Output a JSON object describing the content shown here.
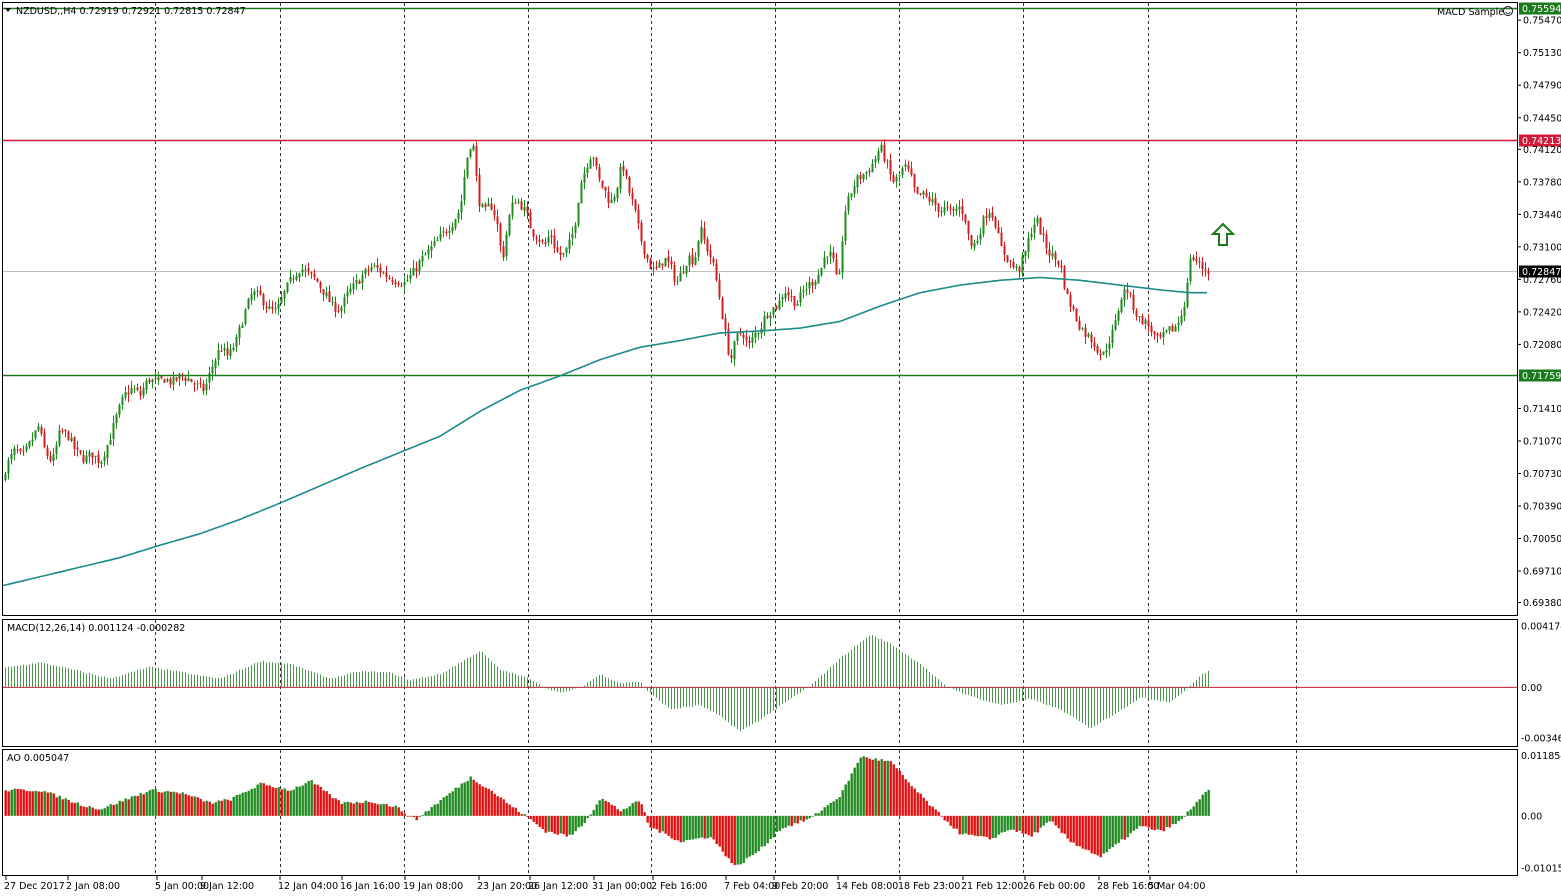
{
  "header": {
    "symbol_info": "NZDUSD,,H4  0.72919 0.72921 0.72815 0.72847",
    "indicator_name": "MACD Sample",
    "macd_info": "MACD(12,26,14) 0.001124 -0.000282",
    "ao_info": "AO 0.005047"
  },
  "colors": {
    "bull_candle": "#1f8a1f",
    "bear_candle": "#d11f1f",
    "resistance": "#d01a3a",
    "support": "#1b7a1b",
    "ma": "#1a8a8a",
    "ao_up": "#1f8a1f",
    "ao_down": "#e01010",
    "macd_hist": "#3a8a3a"
  },
  "chart_data": [
    {
      "name": "price",
      "type": "candlestick",
      "price_axis": {
        "ylim": [
          0.6925,
          0.7565
        ],
        "ticks": [
          "0.75470",
          "0.75130",
          "0.74790",
          "0.74450",
          "0.74120",
          "0.73780",
          "0.73440",
          "0.73100",
          "0.72760",
          "0.72420",
          "0.72080",
          "0.71410",
          "0.71070",
          "0.70730",
          "0.70390",
          "0.70050",
          "0.69710",
          "0.69380"
        ]
      },
      "levels": [
        {
          "label": "0.75594",
          "value": 0.75594,
          "color": "#1b7a1b"
        },
        {
          "label": "0.74213",
          "value": 0.74213,
          "color": "#d01a3a"
        },
        {
          "label": "0.71759",
          "value": 0.71759,
          "color": "#1b7a1b"
        },
        {
          "label": "0.72847",
          "value": 0.72847,
          "color": "#000000"
        }
      ],
      "time_axis": [
        "27 Dec 2017",
        "2 Jan 08:00",
        "5 Jan 00:00",
        "9 Jan 12:00",
        "12 Jan 04:00",
        "16 Jan 16:00",
        "19 Jan 08:00",
        "23 Jan 20:00",
        "26 Jan 12:00",
        "31 Jan 00:00",
        "2 Feb 16:00",
        "7 Feb 04:00",
        "9 Feb 20:00",
        "14 Feb 08:00",
        "18 Feb 23:00",
        "21 Feb 12:00",
        "26 Feb 00:00",
        "28 Feb 16:00",
        "5 Mar 04:00"
      ],
      "close_path": [
        [
          0,
          0.7065
        ],
        [
          8,
          0.7085
        ],
        [
          15,
          0.7098
        ],
        [
          22,
          0.709
        ],
        [
          30,
          0.7105
        ],
        [
          38,
          0.7122
        ],
        [
          45,
          0.7095
        ],
        [
          52,
          0.7085
        ],
        [
          60,
          0.7118
        ],
        [
          68,
          0.7112
        ],
        [
          76,
          0.7095
        ],
        [
          84,
          0.7088
        ],
        [
          92,
          0.7093
        ],
        [
          100,
          0.7085
        ],
        [
          108,
          0.7105
        ],
        [
          116,
          0.7132
        ],
        [
          124,
          0.7155
        ],
        [
          132,
          0.7162
        ],
        [
          140,
          0.7155
        ],
        [
          148,
          0.7172
        ],
        [
          156,
          0.7168
        ],
        [
          164,
          0.7172
        ],
        [
          172,
          0.7168
        ],
        [
          180,
          0.7175
        ],
        [
          188,
          0.7172
        ],
        [
          196,
          0.7165
        ],
        [
          204,
          0.716
        ],
        [
          212,
          0.7185
        ],
        [
          220,
          0.7205
        ],
        [
          228,
          0.7195
        ],
        [
          236,
          0.7212
        ],
        [
          244,
          0.724
        ],
        [
          252,
          0.7262
        ],
        [
          260,
          0.7258
        ],
        [
          268,
          0.7245
        ],
        [
          276,
          0.7242
        ],
        [
          284,
          0.7262
        ],
        [
          292,
          0.7278
        ],
        [
          300,
          0.7288
        ],
        [
          308,
          0.7282
        ],
        [
          316,
          0.7275
        ],
        [
          324,
          0.7262
        ],
        [
          332,
          0.7248
        ],
        [
          340,
          0.7245
        ],
        [
          348,
          0.7262
        ],
        [
          356,
          0.7272
        ],
        [
          364,
          0.7282
        ],
        [
          372,
          0.729
        ],
        [
          380,
          0.7285
        ],
        [
          388,
          0.7278
        ],
        [
          396,
          0.7275
        ],
        [
          404,
          0.7272
        ],
        [
          412,
          0.7282
        ],
        [
          420,
          0.7295
        ],
        [
          428,
          0.7305
        ],
        [
          436,
          0.7315
        ],
        [
          444,
          0.7325
        ],
        [
          452,
          0.7335
        ],
        [
          460,
          0.735
        ],
        [
          466,
          0.74
        ],
        [
          472,
          0.7425
        ],
        [
          478,
          0.736
        ],
        [
          484,
          0.7345
        ],
        [
          490,
          0.7355
        ],
        [
          496,
          0.734
        ],
        [
          502,
          0.7295
        ],
        [
          508,
          0.7338
        ],
        [
          514,
          0.736
        ],
        [
          520,
          0.7355
        ],
        [
          526,
          0.7345
        ],
        [
          532,
          0.7325
        ],
        [
          538,
          0.732
        ],
        [
          544,
          0.731
        ],
        [
          550,
          0.7325
        ],
        [
          556,
          0.7305
        ],
        [
          562,
          0.73
        ],
        [
          568,
          0.731
        ],
        [
          574,
          0.733
        ],
        [
          580,
          0.7375
        ],
        [
          586,
          0.7395
        ],
        [
          592,
          0.741
        ],
        [
          598,
          0.738
        ],
        [
          604,
          0.737
        ],
        [
          610,
          0.7355
        ],
        [
          616,
          0.737
        ],
        [
          622,
          0.7398
        ],
        [
          628,
          0.737
        ],
        [
          634,
          0.735
        ],
        [
          640,
          0.732
        ],
        [
          646,
          0.73
        ],
        [
          652,
          0.7285
        ],
        [
          658,
          0.7288
        ],
        [
          664,
          0.7298
        ],
        [
          670,
          0.729
        ],
        [
          676,
          0.7272
        ],
        [
          682,
          0.7285
        ],
        [
          688,
          0.73
        ],
        [
          694,
          0.7295
        ],
        [
          700,
          0.733
        ],
        [
          706,
          0.731
        ],
        [
          712,
          0.7295
        ],
        [
          718,
          0.7265
        ],
        [
          724,
          0.7225
        ],
        [
          730,
          0.719
        ],
        [
          736,
          0.7215
        ],
        [
          742,
          0.7222
        ],
        [
          748,
          0.7205
        ],
        [
          754,
          0.7218
        ],
        [
          760,
          0.7225
        ],
        [
          766,
          0.724
        ],
        [
          772,
          0.7245
        ],
        [
          778,
          0.725
        ],
        [
          784,
          0.7265
        ],
        [
          790,
          0.7258
        ],
        [
          796,
          0.725
        ],
        [
          802,
          0.7262
        ],
        [
          808,
          0.727
        ],
        [
          814,
          0.7275
        ],
        [
          820,
          0.7285
        ],
        [
          826,
          0.7305
        ],
        [
          832,
          0.73
        ],
        [
          838,
          0.7265
        ],
        [
          844,
          0.7345
        ],
        [
          850,
          0.7365
        ],
        [
          856,
          0.738
        ],
        [
          862,
          0.7385
        ],
        [
          868,
          0.739
        ],
        [
          874,
          0.74
        ],
        [
          880,
          0.7415
        ],
        [
          886,
          0.7398
        ],
        [
          892,
          0.7378
        ],
        [
          898,
          0.7382
        ],
        [
          904,
          0.7395
        ],
        [
          910,
          0.7385
        ],
        [
          916,
          0.7362
        ],
        [
          922,
          0.7365
        ],
        [
          928,
          0.736
        ],
        [
          934,
          0.7355
        ],
        [
          940,
          0.7348
        ],
        [
          946,
          0.735
        ],
        [
          952,
          0.7345
        ],
        [
          958,
          0.7352
        ],
        [
          964,
          0.7345
        ],
        [
          970,
          0.731
        ],
        [
          976,
          0.7315
        ],
        [
          982,
          0.7335
        ],
        [
          988,
          0.735
        ],
        [
          994,
          0.734
        ],
        [
          1000,
          0.731
        ],
        [
          1006,
          0.73
        ],
        [
          1012,
          0.729
        ],
        [
          1018,
          0.7285
        ],
        [
          1024,
          0.73
        ],
        [
          1030,
          0.7325
        ],
        [
          1036,
          0.734
        ],
        [
          1042,
          0.732
        ],
        [
          1048,
          0.7305
        ],
        [
          1054,
          0.7298
        ],
        [
          1060,
          0.7292
        ],
        [
          1066,
          0.726
        ],
        [
          1072,
          0.7245
        ],
        [
          1078,
          0.723
        ],
        [
          1084,
          0.722
        ],
        [
          1090,
          0.7215
        ],
        [
          1096,
          0.7205
        ],
        [
          1102,
          0.7195
        ],
        [
          1108,
          0.721
        ],
        [
          1114,
          0.7225
        ],
        [
          1120,
          0.7255
        ],
        [
          1126,
          0.7268
        ],
        [
          1132,
          0.725
        ],
        [
          1138,
          0.7235
        ],
        [
          1144,
          0.7232
        ],
        [
          1150,
          0.7225
        ],
        [
          1156,
          0.7212
        ],
        [
          1162,
          0.7215
        ],
        [
          1168,
          0.7222
        ],
        [
          1174,
          0.7225
        ],
        [
          1180,
          0.7235
        ],
        [
          1186,
          0.726
        ],
        [
          1190,
          0.73
        ],
        [
          1196,
          0.7295
        ],
        [
          1202,
          0.7288
        ],
        [
          1208,
          0.72847
        ]
      ],
      "ma_path": [
        [
          0,
          0.6955
        ],
        [
          40,
          0.6965
        ],
        [
          80,
          0.6975
        ],
        [
          120,
          0.6985
        ],
        [
          160,
          0.6998
        ],
        [
          200,
          0.701
        ],
        [
          240,
          0.7025
        ],
        [
          280,
          0.7042
        ],
        [
          320,
          0.706
        ],
        [
          360,
          0.7078
        ],
        [
          400,
          0.7095
        ],
        [
          440,
          0.7112
        ],
        [
          480,
          0.7138
        ],
        [
          520,
          0.716
        ],
        [
          560,
          0.7175
        ],
        [
          600,
          0.7192
        ],
        [
          640,
          0.7205
        ],
        [
          680,
          0.7212
        ],
        [
          720,
          0.722
        ],
        [
          760,
          0.7222
        ],
        [
          800,
          0.7225
        ],
        [
          840,
          0.7232
        ],
        [
          880,
          0.7248
        ],
        [
          920,
          0.7262
        ],
        [
          960,
          0.727
        ],
        [
          1000,
          0.7275
        ],
        [
          1040,
          0.7278
        ],
        [
          1080,
          0.7275
        ],
        [
          1120,
          0.727
        ],
        [
          1160,
          0.7265
        ],
        [
          1190,
          0.7262
        ],
        [
          1208,
          0.7262
        ]
      ]
    },
    {
      "name": "macd",
      "type": "bar",
      "axis_ticks": [
        "0.004174",
        "0.00",
        "-0.003462"
      ],
      "ylim": [
        -0.004,
        0.0046
      ],
      "profile": [
        [
          0,
          0.0013
        ],
        [
          40,
          0.0017
        ],
        [
          80,
          0.0011
        ],
        [
          110,
          0.0006
        ],
        [
          150,
          0.0014
        ],
        [
          200,
          0.0008
        ],
        [
          220,
          0.0006
        ],
        [
          260,
          0.0018
        ],
        [
          290,
          0.0016
        ],
        [
          330,
          0.0006
        ],
        [
          360,
          0.0011
        ],
        [
          390,
          0.001
        ],
        [
          410,
          0.0005
        ],
        [
          440,
          0.0009
        ],
        [
          480,
          0.0025
        ],
        [
          500,
          0.0012
        ],
        [
          530,
          0.0006
        ],
        [
          545,
          0.0
        ],
        [
          560,
          -0.0004
        ],
        [
          580,
          0.0
        ],
        [
          600,
          0.0009
        ],
        [
          620,
          0.0003
        ],
        [
          640,
          0.0004
        ],
        [
          648,
          -0.0003
        ],
        [
          670,
          -0.0015
        ],
        [
          700,
          -0.0012
        ],
        [
          720,
          -0.002
        ],
        [
          740,
          -0.003
        ],
        [
          760,
          -0.0022
        ],
        [
          790,
          -0.0008
        ],
        [
          810,
          0.0001
        ],
        [
          840,
          0.002
        ],
        [
          870,
          0.0036
        ],
        [
          890,
          0.003
        ],
        [
          920,
          0.0016
        ],
        [
          945,
          0.0001
        ],
        [
          970,
          -0.0006
        ],
        [
          1000,
          -0.0012
        ],
        [
          1030,
          -0.0008
        ],
        [
          1060,
          -0.0015
        ],
        [
          1090,
          -0.0028
        ],
        [
          1110,
          -0.002
        ],
        [
          1140,
          -0.0007
        ],
        [
          1170,
          -0.001
        ],
        [
          1185,
          -0.0002
        ],
        [
          1200,
          0.0008
        ],
        [
          1208,
          0.0011
        ]
      ]
    },
    {
      "name": "ao",
      "type": "bar",
      "axis_ticks": [
        "0.011854",
        "0.00",
        "-0.010152"
      ],
      "ylim": [
        -0.0115,
        0.0128
      ],
      "profile": [
        [
          0,
          0.005
        ],
        [
          40,
          0.005
        ],
        [
          80,
          0.0022
        ],
        [
          100,
          0.0013
        ],
        [
          120,
          0.0028
        ],
        [
          150,
          0.005
        ],
        [
          180,
          0.0045
        ],
        [
          210,
          0.0025
        ],
        [
          230,
          0.0032
        ],
        [
          260,
          0.0062
        ],
        [
          290,
          0.005
        ],
        [
          310,
          0.0068
        ],
        [
          340,
          0.0025
        ],
        [
          370,
          0.0028
        ],
        [
          395,
          0.0018
        ],
        [
          415,
          -0.0008
        ],
        [
          430,
          0.0015
        ],
        [
          470,
          0.0075
        ],
        [
          490,
          0.005
        ],
        [
          510,
          0.002
        ],
        [
          525,
          0.0
        ],
        [
          545,
          -0.003
        ],
        [
          570,
          -0.004
        ],
        [
          585,
          -0.001
        ],
        [
          600,
          0.0035
        ],
        [
          620,
          0.001
        ],
        [
          640,
          0.003
        ],
        [
          648,
          -0.002
        ],
        [
          680,
          -0.005
        ],
        [
          710,
          -0.004
        ],
        [
          735,
          -0.01
        ],
        [
          760,
          -0.0065
        ],
        [
          780,
          -0.0025
        ],
        [
          810,
          -0.0005
        ],
        [
          840,
          0.004
        ],
        [
          860,
          0.0115
        ],
        [
          890,
          0.0105
        ],
        [
          910,
          0.006
        ],
        [
          935,
          0.001
        ],
        [
          960,
          -0.0035
        ],
        [
          990,
          -0.0045
        ],
        [
          1010,
          -0.0025
        ],
        [
          1030,
          -0.004
        ],
        [
          1050,
          -0.001
        ],
        [
          1070,
          -0.005
        ],
        [
          1100,
          -0.008
        ],
        [
          1120,
          -0.005
        ],
        [
          1140,
          -0.002
        ],
        [
          1160,
          -0.003
        ],
        [
          1180,
          -0.001
        ],
        [
          1195,
          0.0025
        ],
        [
          1208,
          0.005
        ]
      ]
    }
  ]
}
